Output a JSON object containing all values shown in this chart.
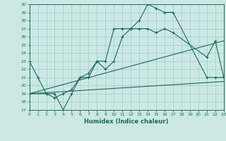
{
  "xlabel": "Humidex (Indice chaleur)",
  "bg_color": "#cce8e4",
  "grid_color": "#99cccc",
  "line_color": "#1a6b5a",
  "xlim": [
    0,
    23
  ],
  "ylim": [
    17,
    30
  ],
  "xticks": [
    0,
    1,
    2,
    3,
    4,
    5,
    6,
    7,
    8,
    9,
    10,
    11,
    12,
    13,
    14,
    15,
    16,
    17,
    18,
    19,
    20,
    21,
    22,
    23
  ],
  "yticks": [
    17,
    18,
    19,
    20,
    21,
    22,
    23,
    24,
    25,
    26,
    27,
    28,
    29,
    30
  ],
  "series1_x": [
    0,
    1,
    2,
    3,
    4,
    5,
    6,
    7,
    8,
    9,
    10,
    11,
    12,
    13,
    14,
    15,
    16,
    17,
    21,
    22,
    23
  ],
  "series1_y": [
    23,
    21,
    19,
    19,
    17,
    19,
    21,
    21,
    23,
    23,
    27,
    27,
    27,
    28,
    30,
    29.5,
    29,
    29,
    21,
    21,
    21
  ],
  "series2_x": [
    0,
    2,
    3,
    4,
    5,
    6,
    7,
    8,
    9,
    10,
    11,
    12,
    13,
    14,
    15,
    16,
    17,
    21,
    22,
    23
  ],
  "series2_y": [
    19,
    19,
    18.5,
    19,
    19.5,
    21,
    21.5,
    23,
    22,
    23,
    26,
    27,
    27,
    27,
    26.5,
    27,
    26.5,
    23.5,
    25.5,
    21
  ],
  "series3_x": [
    0,
    23
  ],
  "series3_y": [
    19,
    20.5
  ],
  "series4_x": [
    0,
    23
  ],
  "series4_y": [
    19,
    25.5
  ]
}
